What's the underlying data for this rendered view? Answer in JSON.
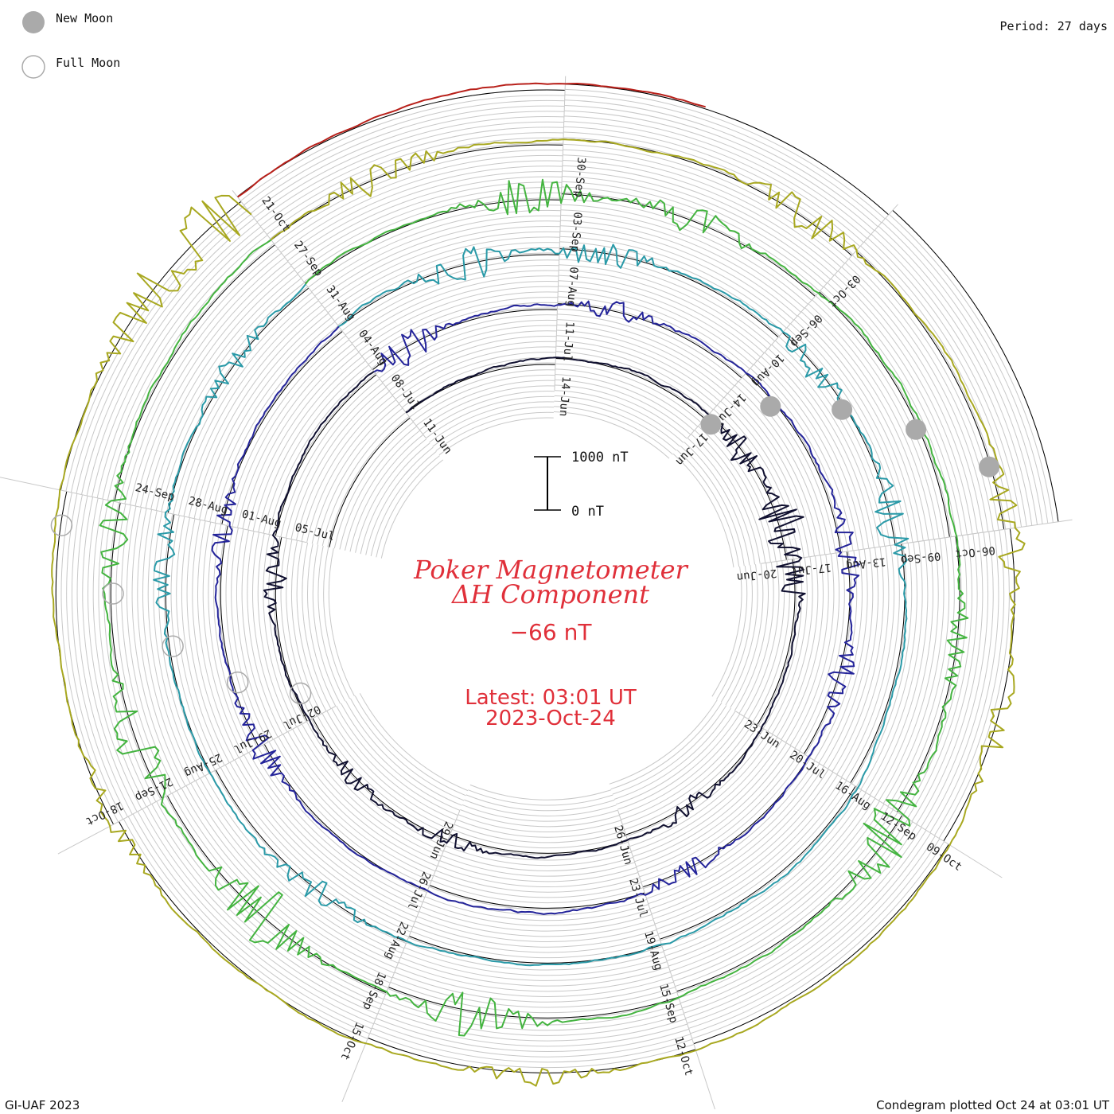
{
  "legend": {
    "new_moon_label": "New Moon",
    "full_moon_label": "Full Moon",
    "new_moon_color": "#aaaaaa",
    "full_moon_stroke": "#aaaaaa"
  },
  "period_label": "Period: 27 days",
  "scale_bar": {
    "top_label": "1000 nT",
    "bottom_label": "0 nT"
  },
  "title": {
    "line1": "Poker Magnetometer",
    "line2": "ΔH Component",
    "value": "−66 nT",
    "latest_line1": "Latest: 03:01 UT",
    "latest_line2": "2023-Oct-24",
    "color": "#e0303a"
  },
  "footer": {
    "left": "GI-UAF 2023",
    "right": "Condegram plotted Oct 24 at 03:01 UT"
  },
  "chart_data": {
    "type": "line",
    "plot": "condegram spiral",
    "period_days": 27,
    "units": "nT",
    "grid": true,
    "series": [
      {
        "color": "#101030",
        "dates": [
          "11-Jun",
          "14-Jun",
          "17-Jun",
          "20-Jun",
          "23-Jun",
          "26-Jun",
          "29-Jun",
          "02-Jul",
          "05-Jul"
        ],
        "noise": 20,
        "disturb": [
          [
            2.3,
            200
          ],
          [
            2.8,
            350
          ],
          [
            3.1,
            250
          ],
          [
            4.6,
            150
          ],
          [
            6.0,
            120
          ],
          [
            6.6,
            150
          ],
          [
            7.8,
            180
          ]
        ]
      },
      {
        "color": "#24249a",
        "dates": [
          "08-Jul",
          "11-Jul",
          "14-Jul",
          "17-Jul",
          "20-Jul",
          "23-Jul",
          "26-Jul",
          "29-Jul",
          "01-Aug"
        ],
        "noise": 25,
        "disturb": [
          [
            0.2,
            250
          ],
          [
            1.3,
            150
          ],
          [
            3.0,
            200
          ],
          [
            3.6,
            200
          ],
          [
            4.8,
            150
          ],
          [
            7.0,
            200
          ],
          [
            8.0,
            150
          ]
        ]
      },
      {
        "color": "#2a9aa8",
        "dates": [
          "04-Aug",
          "07-Aug",
          "10-Aug",
          "13-Aug",
          "16-Aug",
          "19-Aug",
          "22-Aug",
          "25-Aug",
          "28-Aug"
        ],
        "noise": 25,
        "disturb": [
          [
            0.6,
            300
          ],
          [
            1.2,
            200
          ],
          [
            2.2,
            200
          ],
          [
            2.9,
            250
          ],
          [
            6.4,
            200
          ],
          [
            7.8,
            200
          ],
          [
            8.6,
            150
          ]
        ]
      },
      {
        "color": "#44b440",
        "dates": [
          "31-Aug",
          "03-Sep",
          "06-Sep",
          "09-Sep",
          "12-Sep",
          "15-Sep",
          "18-Sep",
          "21-Sep",
          "24-Sep"
        ],
        "noise": 30,
        "disturb": [
          [
            0.9,
            350
          ],
          [
            1.5,
            250
          ],
          [
            3.4,
            200
          ],
          [
            4.1,
            400
          ],
          [
            5.7,
            350
          ],
          [
            6.5,
            450
          ],
          [
            7.2,
            350
          ],
          [
            7.9,
            250
          ]
        ]
      },
      {
        "color": "#a8a820",
        "dates": [
          "27-Sep",
          "30-Sep",
          "03-Oct",
          "06-Oct",
          "09-Oct",
          "12-Oct",
          "15-Oct",
          "18-Oct"
        ],
        "noise": 25,
        "disturb": [
          [
            8.6,
            350
          ],
          [
            8.9,
            450
          ],
          [
            0.4,
            250
          ],
          [
            1.8,
            250
          ],
          [
            3.0,
            300
          ],
          [
            3.6,
            200
          ],
          [
            5.5,
            150
          ],
          [
            7.0,
            150
          ]
        ]
      },
      {
        "color": "#b8201a",
        "dates": [
          "21-Oct"
        ],
        "noise": 15,
        "disturb": [
          [
            8.3,
            250
          ],
          [
            8.6,
            150
          ]
        ]
      }
    ]
  }
}
